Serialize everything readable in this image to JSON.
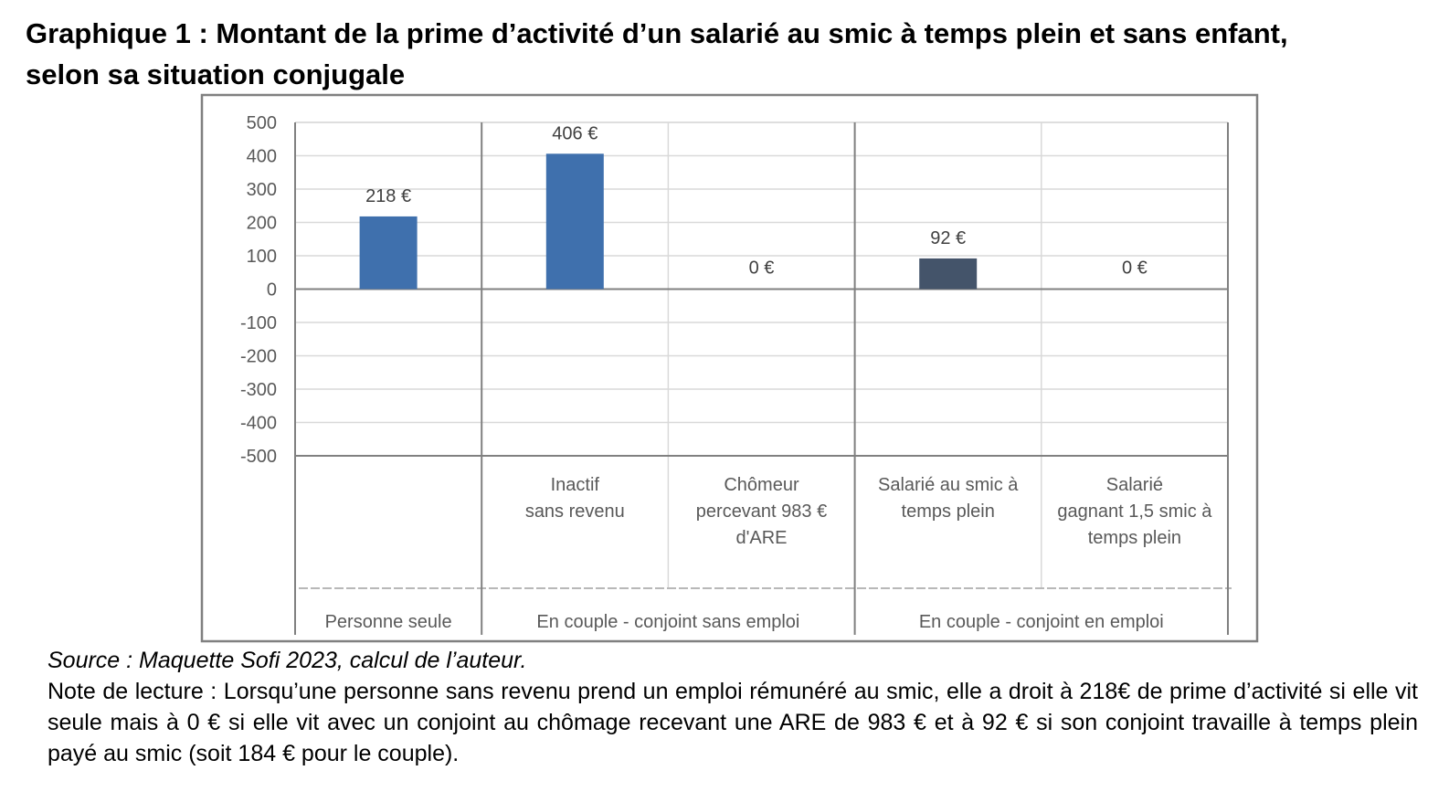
{
  "title": {
    "line1": "Graphique 1 : Montant de la prime d’activité d’un salarié au smic à temps plein et sans enfant,",
    "line2": "selon sa situation conjugale"
  },
  "chart_data": {
    "type": "bar",
    "title": "Graphique 1 : Montant de la prime d’activité d’un salarié au smic à temps plein et sans enfant, selon sa situation conjugale",
    "ylim": [
      -500,
      500
    ],
    "yticks": [
      500,
      400,
      300,
      200,
      100,
      0,
      -100,
      -200,
      -300,
      -400,
      -500
    ],
    "grid": true,
    "categories": [
      {
        "label": [
          "",
          ""
        ],
        "group": 0
      },
      {
        "label": [
          "Inactif",
          "sans revenu"
        ],
        "group": 1
      },
      {
        "label": [
          "Chômeur",
          "percevant 983 €",
          "d'ARE"
        ],
        "group": 1
      },
      {
        "label": [
          "Salarié au smic à",
          "temps plein"
        ],
        "group": 2
      },
      {
        "label": [
          "Salarié",
          "gagnant 1,5 smic à",
          "temps plein"
        ],
        "group": 2
      }
    ],
    "groups": [
      "Personne seule",
      "En couple - conjoint sans emploi",
      "En couple - conjoint en emploi"
    ],
    "values": [
      218,
      406,
      0,
      92,
      0
    ],
    "data_labels": [
      "218 €",
      "406 €",
      "0 €",
      "92 €",
      "0 €"
    ],
    "colors": [
      "#3f70ad",
      "#3f70ad",
      "#3f70ad",
      "#44546a",
      "#3f70ad"
    ]
  },
  "notes": {
    "source": "Source : Maquette Sofi 2023, calcul de l’auteur.",
    "reading": "Note de lecture : Lorsqu’une personne sans revenu prend un emploi rémunéré au smic, elle a droit à 218€ de prime d’activité si elle vit seule mais à 0 € si elle vit avec un conjoint au chômage recevant une ARE de 983 € et à 92 € si son conjoint travaille à temps plein payé au smic (soit 184 € pour le couple)."
  }
}
